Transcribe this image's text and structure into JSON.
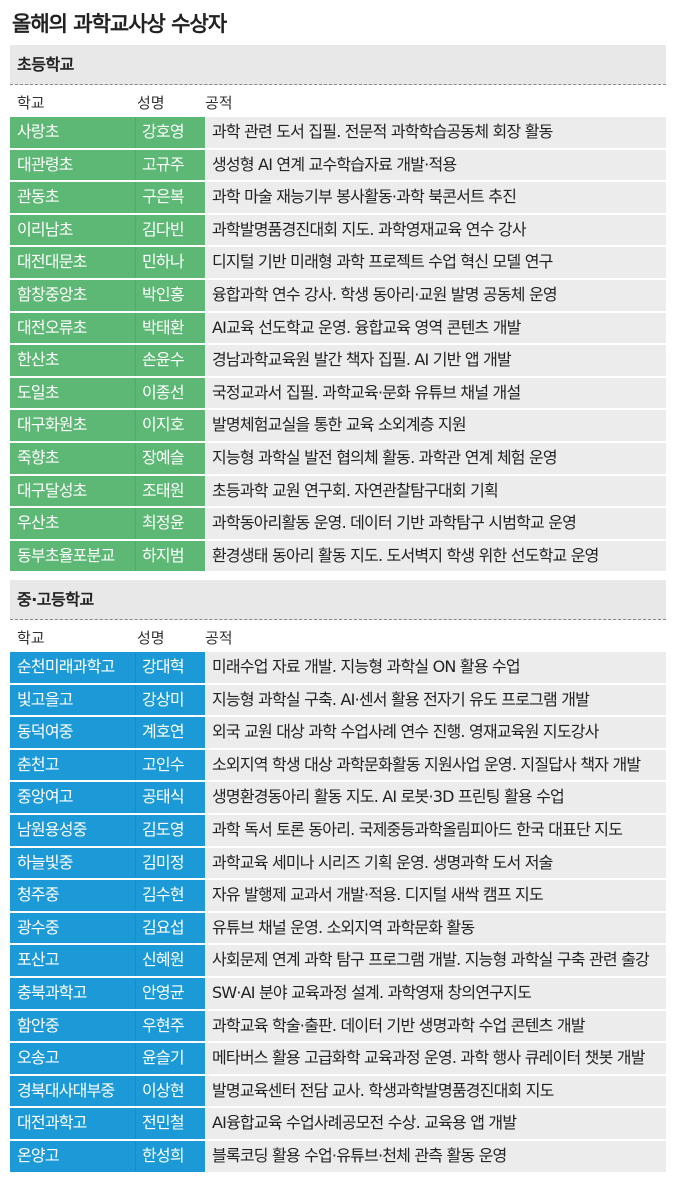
{
  "title": "올해의 과학교사상 수상자",
  "colors": {
    "elementary": "#5cb874",
    "secondary": "#1b9ad7",
    "row_bg": "#ececec"
  },
  "columns": {
    "school": "학교",
    "name": "성명",
    "achievement": "공적"
  },
  "elementary": {
    "heading": "초등학교",
    "rows": [
      {
        "school": "사랑초",
        "name": "강호영",
        "achievement": "과학 관련 도서 집필. 전문적 과학학습공동체 회장 활동"
      },
      {
        "school": "대관령초",
        "name": "고규주",
        "achievement": "생성형 AI 연계 교수학습자료 개발·적용"
      },
      {
        "school": "관동초",
        "name": "구은복",
        "achievement": "과학 마술 재능기부 봉사활동·과학 북콘서트 추진"
      },
      {
        "school": "이리남초",
        "name": "김다빈",
        "achievement": "과학발명품경진대회 지도. 과학영재교육 연수 강사"
      },
      {
        "school": "대전대문초",
        "name": "민하나",
        "achievement": "디지털 기반 미래형 과학 프로젝트 수업 혁신 모델 연구"
      },
      {
        "school": "함창중앙초",
        "name": "박인홍",
        "achievement": "융합과학 연수 강사. 학생 동아리·교원 발명 공동체 운영"
      },
      {
        "school": "대전오류초",
        "name": "박태환",
        "achievement": "AI교육 선도학교 운영. 융합교육 영역 콘텐츠 개발"
      },
      {
        "school": "한산초",
        "name": "손윤수",
        "achievement": "경남과학교육원 발간 책자 집필. AI 기반 앱 개발"
      },
      {
        "school": "도일초",
        "name": "이종선",
        "achievement": "국정교과서 집필. 과학교육·문화 유튜브 채널 개설"
      },
      {
        "school": "대구화원초",
        "name": "이지호",
        "achievement": "발명체험교실을 통한 교육 소외계층 지원"
      },
      {
        "school": "죽향초",
        "name": "장예슬",
        "achievement": "지능형 과학실 발전 협의체 활동. 과학관 연계 체험 운영"
      },
      {
        "school": "대구달성초",
        "name": "조태원",
        "achievement": "초등과학 교원 연구회. 자연관찰탐구대회 기획"
      },
      {
        "school": "우산초",
        "name": "최정윤",
        "achievement": "과학동아리활동 운영. 데이터 기반 과학탐구 시범학교 운영"
      },
      {
        "school": "동부초율포분교",
        "name": "하지범",
        "achievement": "환경생태 동아리 활동 지도. 도서벽지 학생 위한 선도학교 운영"
      }
    ]
  },
  "secondary": {
    "heading": "중·고등학교",
    "rows": [
      {
        "school": "순천미래과학고",
        "name": "강대혁",
        "achievement": "미래수업 자료 개발. 지능형 과학실 ON 활용 수업"
      },
      {
        "school": "빛고을고",
        "name": "강상미",
        "achievement": "지능형 과학실 구축. AI·센서 활용 전자기 유도 프로그램 개발"
      },
      {
        "school": "동덕여중",
        "name": "계호연",
        "achievement": "외국 교원 대상 과학 수업사례 연수 진행. 영재교육원 지도강사"
      },
      {
        "school": "춘천고",
        "name": "고인수",
        "achievement": "소외지역 학생 대상 과학문화활동 지원사업 운영. 지질답사 책자 개발"
      },
      {
        "school": "중앙여고",
        "name": "공태식",
        "achievement": "생명환경동아리 활동 지도. AI 로봇·3D 프린팅 활용 수업"
      },
      {
        "school": "남원용성중",
        "name": "김도영",
        "achievement": "과학 독서 토론 동아리. 국제중등과학올림피아드 한국 대표단 지도"
      },
      {
        "school": "하늘빛중",
        "name": "김미정",
        "achievement": "과학교육 세미나 시리즈 기획 운영. 생명과학 도서 저술"
      },
      {
        "school": "청주중",
        "name": "김수현",
        "achievement": "자유 발행제 교과서 개발·적용. 디지털 새싹 캠프 지도"
      },
      {
        "school": "광수중",
        "name": "김요섭",
        "achievement": "유튜브 채널 운영. 소외지역 과학문화 활동"
      },
      {
        "school": "포산고",
        "name": "신혜원",
        "achievement": "사회문제 연계 과학 탐구 프로그램 개발. 지능형 과학실 구축 관련 출강"
      },
      {
        "school": "충북과학고",
        "name": "안영균",
        "achievement": "SW·AI 분야 교육과정 설계. 과학영재 창의연구지도"
      },
      {
        "school": "함안중",
        "name": "우현주",
        "achievement": "과학교육 학술·출판. 데이터 기반 생명과학 수업 콘텐츠 개발"
      },
      {
        "school": "오송고",
        "name": "윤슬기",
        "achievement": "메타버스 활용 고급화학 교육과정 운영. 과학 행사 큐레이터 챗봇 개발"
      },
      {
        "school": "경북대사대부중",
        "name": "이상현",
        "achievement": "발명교육센터 전담 교사. 학생과학발명품경진대회 지도"
      },
      {
        "school": "대전과학고",
        "name": "전민철",
        "achievement": "AI융합교육 수업사례공모전 수상. 교육용 앱 개발"
      },
      {
        "school": "온양고",
        "name": "한성희",
        "achievement": "블록코딩 활용 수업·유튜브·천체 관측 활동 운영"
      }
    ]
  }
}
